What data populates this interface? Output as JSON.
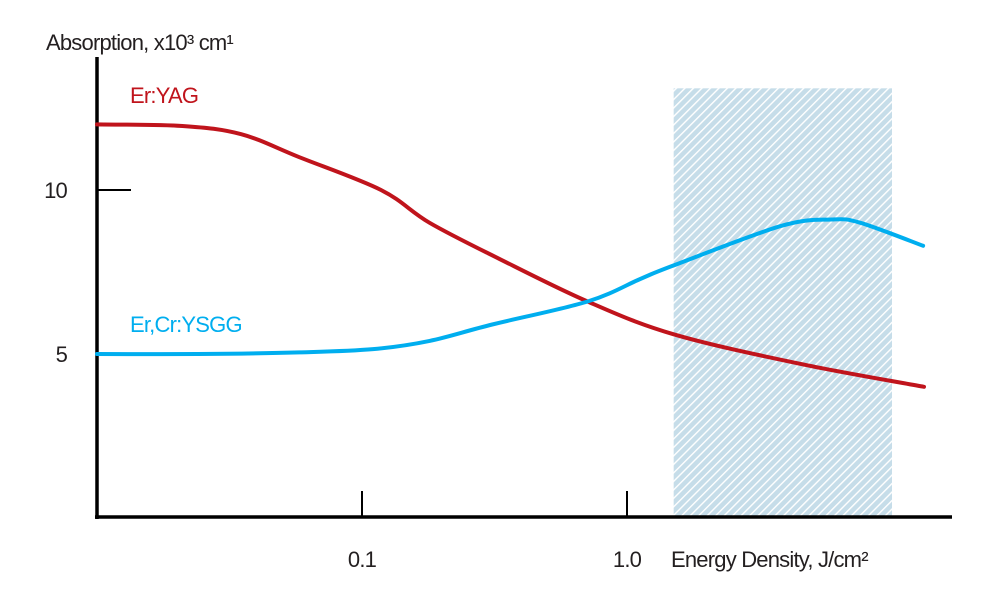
{
  "chart_data": {
    "type": "line",
    "title": "",
    "xlabel": "Energy Density, J/cm²",
    "ylabel": "Absorption, x10³ cm¹",
    "xscale": "log",
    "xlim": [
      0.01,
      17
    ],
    "ylim": [
      0,
      14
    ],
    "grid": false,
    "legend": "inline-labels",
    "x_ticks": [
      {
        "value": 0.1,
        "label": "0.1"
      },
      {
        "value": 1.0,
        "label": "1.0"
      }
    ],
    "y_ticks": [
      {
        "value": 10,
        "label": "10"
      },
      {
        "value": 5,
        "label": "5"
      }
    ],
    "shaded_region": {
      "x_range": [
        1.5,
        10
      ],
      "y_top": 13.1,
      "pattern": "diagonal-hatch",
      "color": "#c6dde9"
    },
    "series": [
      {
        "name": "Er:YAG",
        "color": "#c0141c",
        "x": [
          0.01,
          0.021,
          0.035,
          0.058,
          0.118,
          0.18,
          0.33,
          0.71,
          1.5,
          4.5,
          13.2
        ],
        "values": [
          12.0,
          11.95,
          11.7,
          11.0,
          10.0,
          9.0,
          7.9,
          6.6,
          5.6,
          4.7,
          4.0
        ]
      },
      {
        "name": "Er,Cr:YSGG",
        "color": "#00aeef",
        "x": [
          0.01,
          0.024,
          0.058,
          0.11,
          0.18,
          0.31,
          0.71,
          1.13,
          1.5,
          3.8,
          5.9,
          7.6,
          13.1
        ],
        "values": [
          5.0,
          5.0,
          5.05,
          5.15,
          5.4,
          5.9,
          6.6,
          7.3,
          7.7,
          8.9,
          9.1,
          9.0,
          8.3
        ]
      }
    ]
  }
}
